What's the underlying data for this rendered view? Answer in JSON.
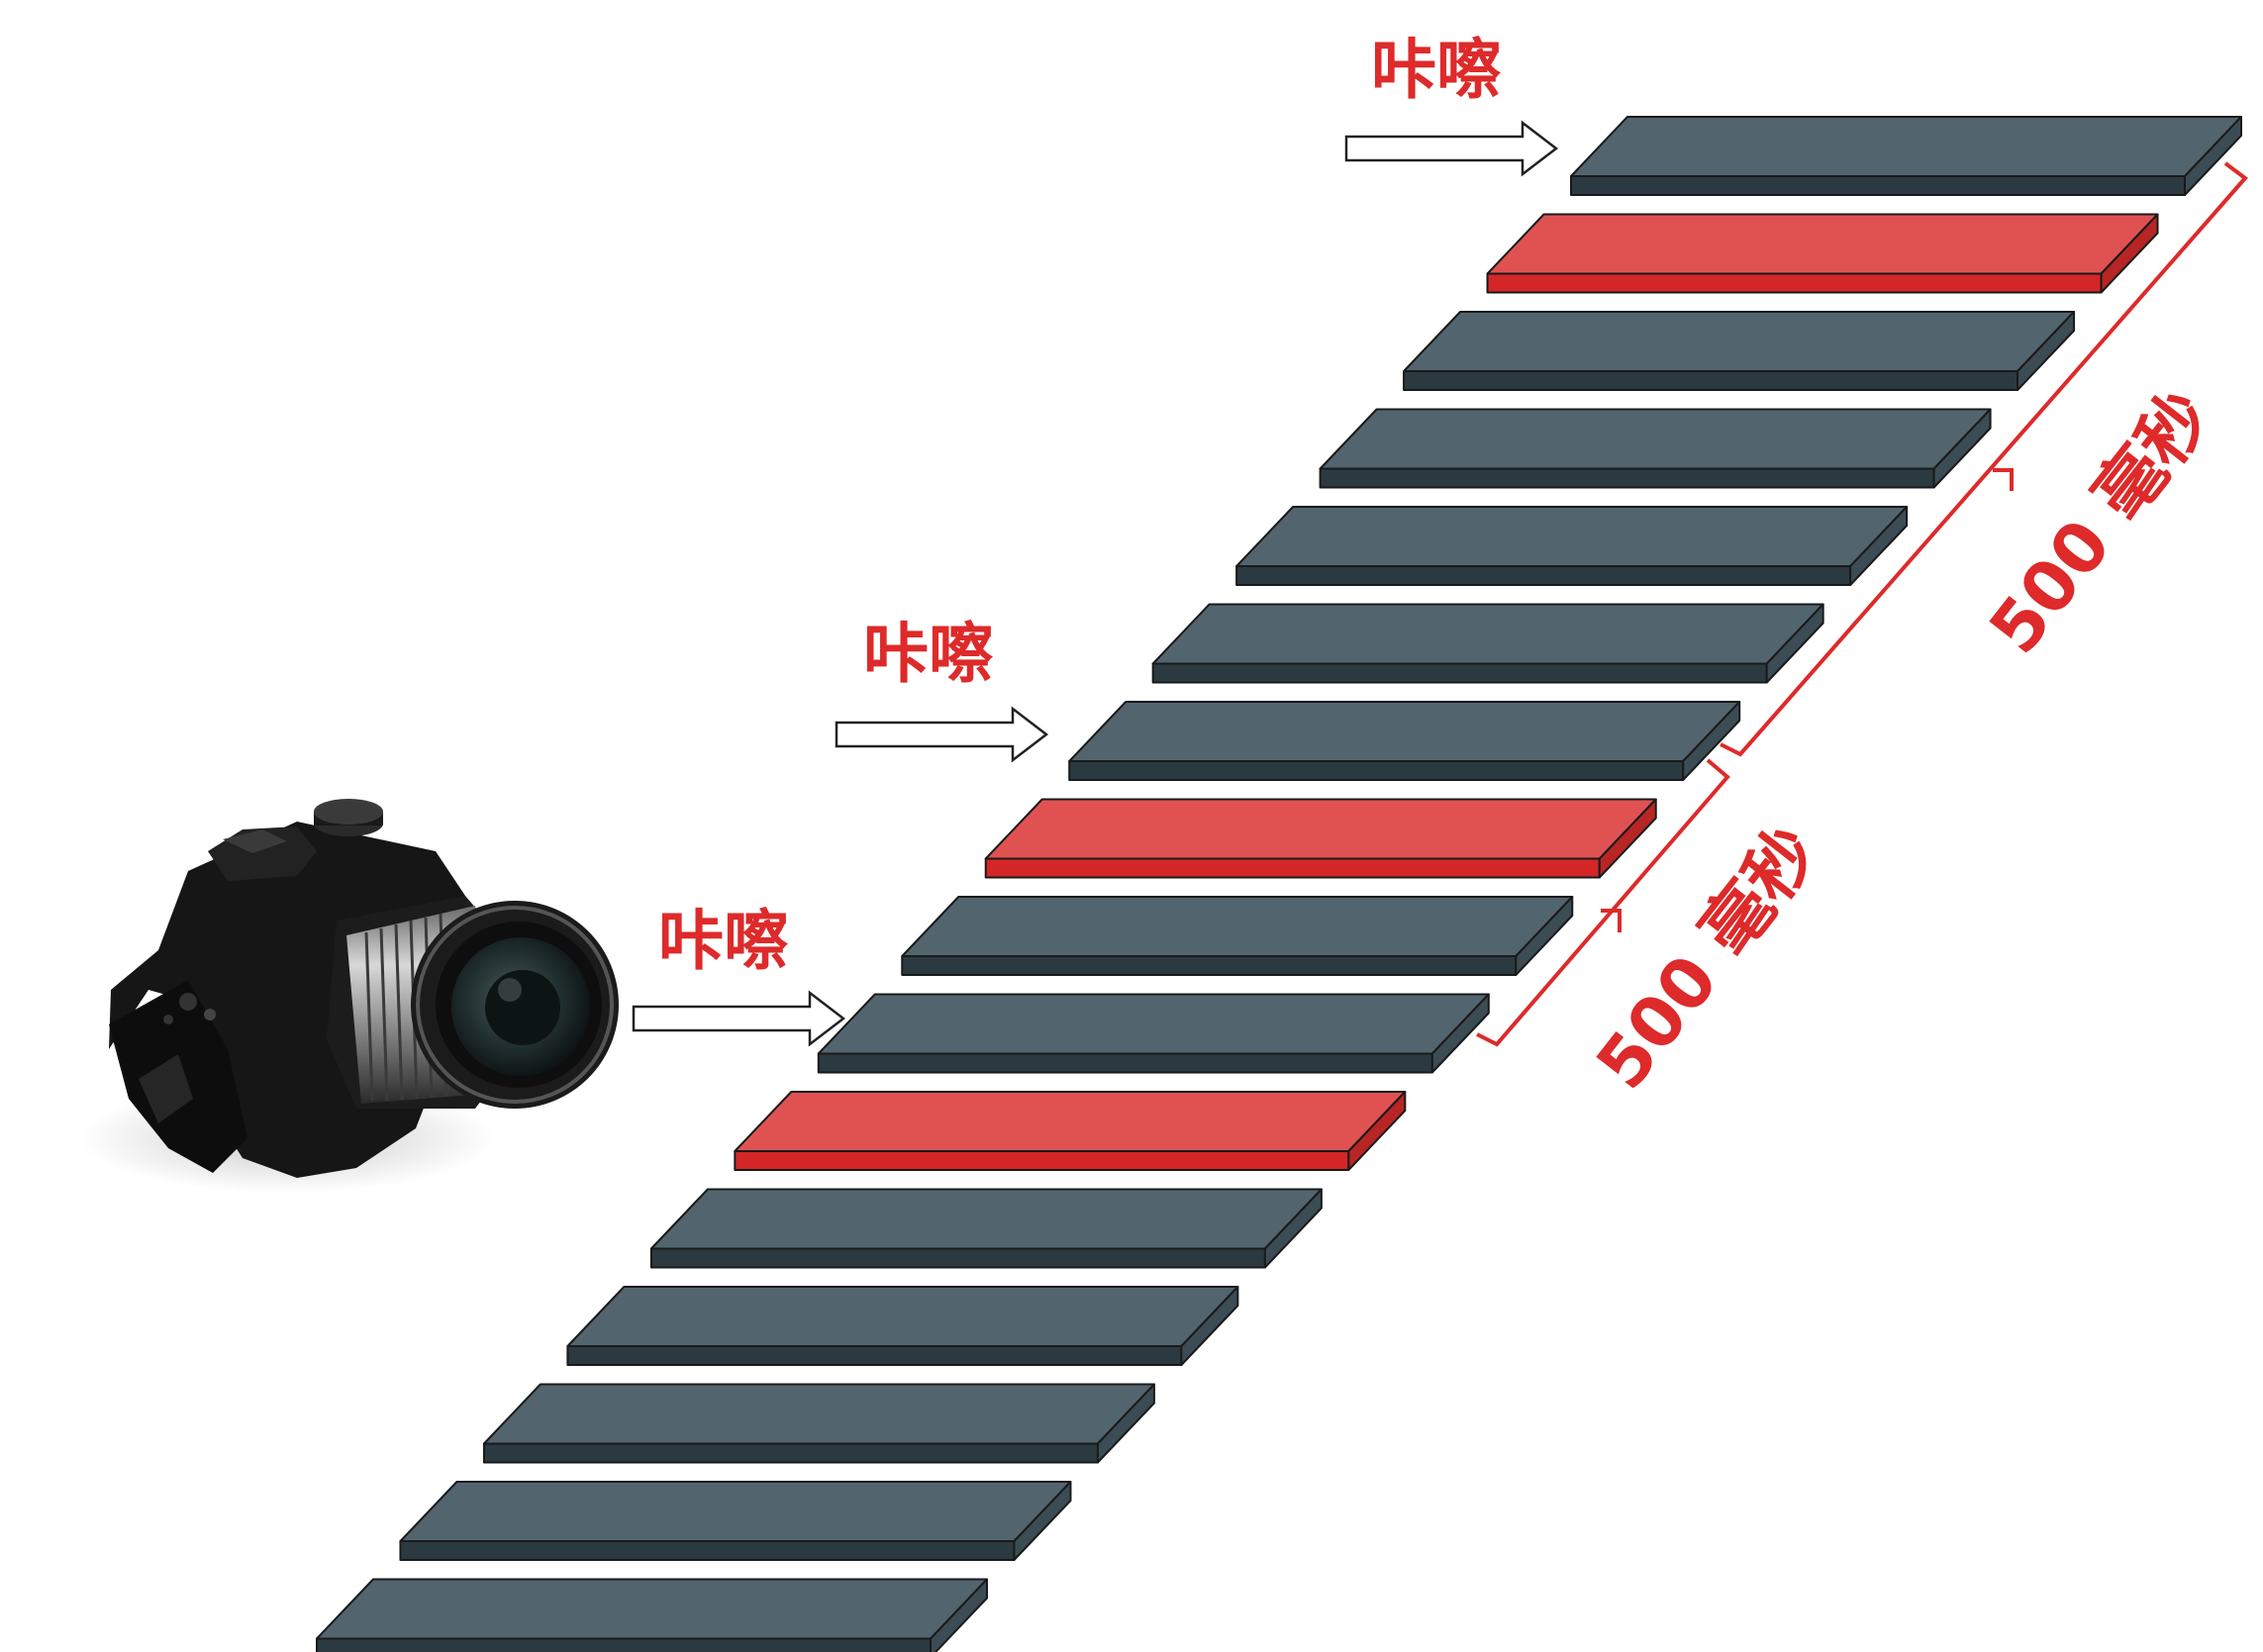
{
  "diagram": {
    "click_label": "咔嚓",
    "duration_label": "500 毫秒",
    "frame_count": 16,
    "captured_frames": [
      1,
      7,
      10
    ],
    "colors": {
      "frame_top": "#52656e",
      "frame_front": "#2b3a40",
      "frame_side": "#3b4c55",
      "captured_top": "#e05252",
      "captured_front": "#d42626",
      "captured_side": "#b82525",
      "accent": "#de2a2a",
      "camera_body": "#161616"
    },
    "icons": {
      "camera": "camera-icon",
      "arrow": "right-arrow-icon",
      "bracket": "bracket-icon"
    }
  }
}
